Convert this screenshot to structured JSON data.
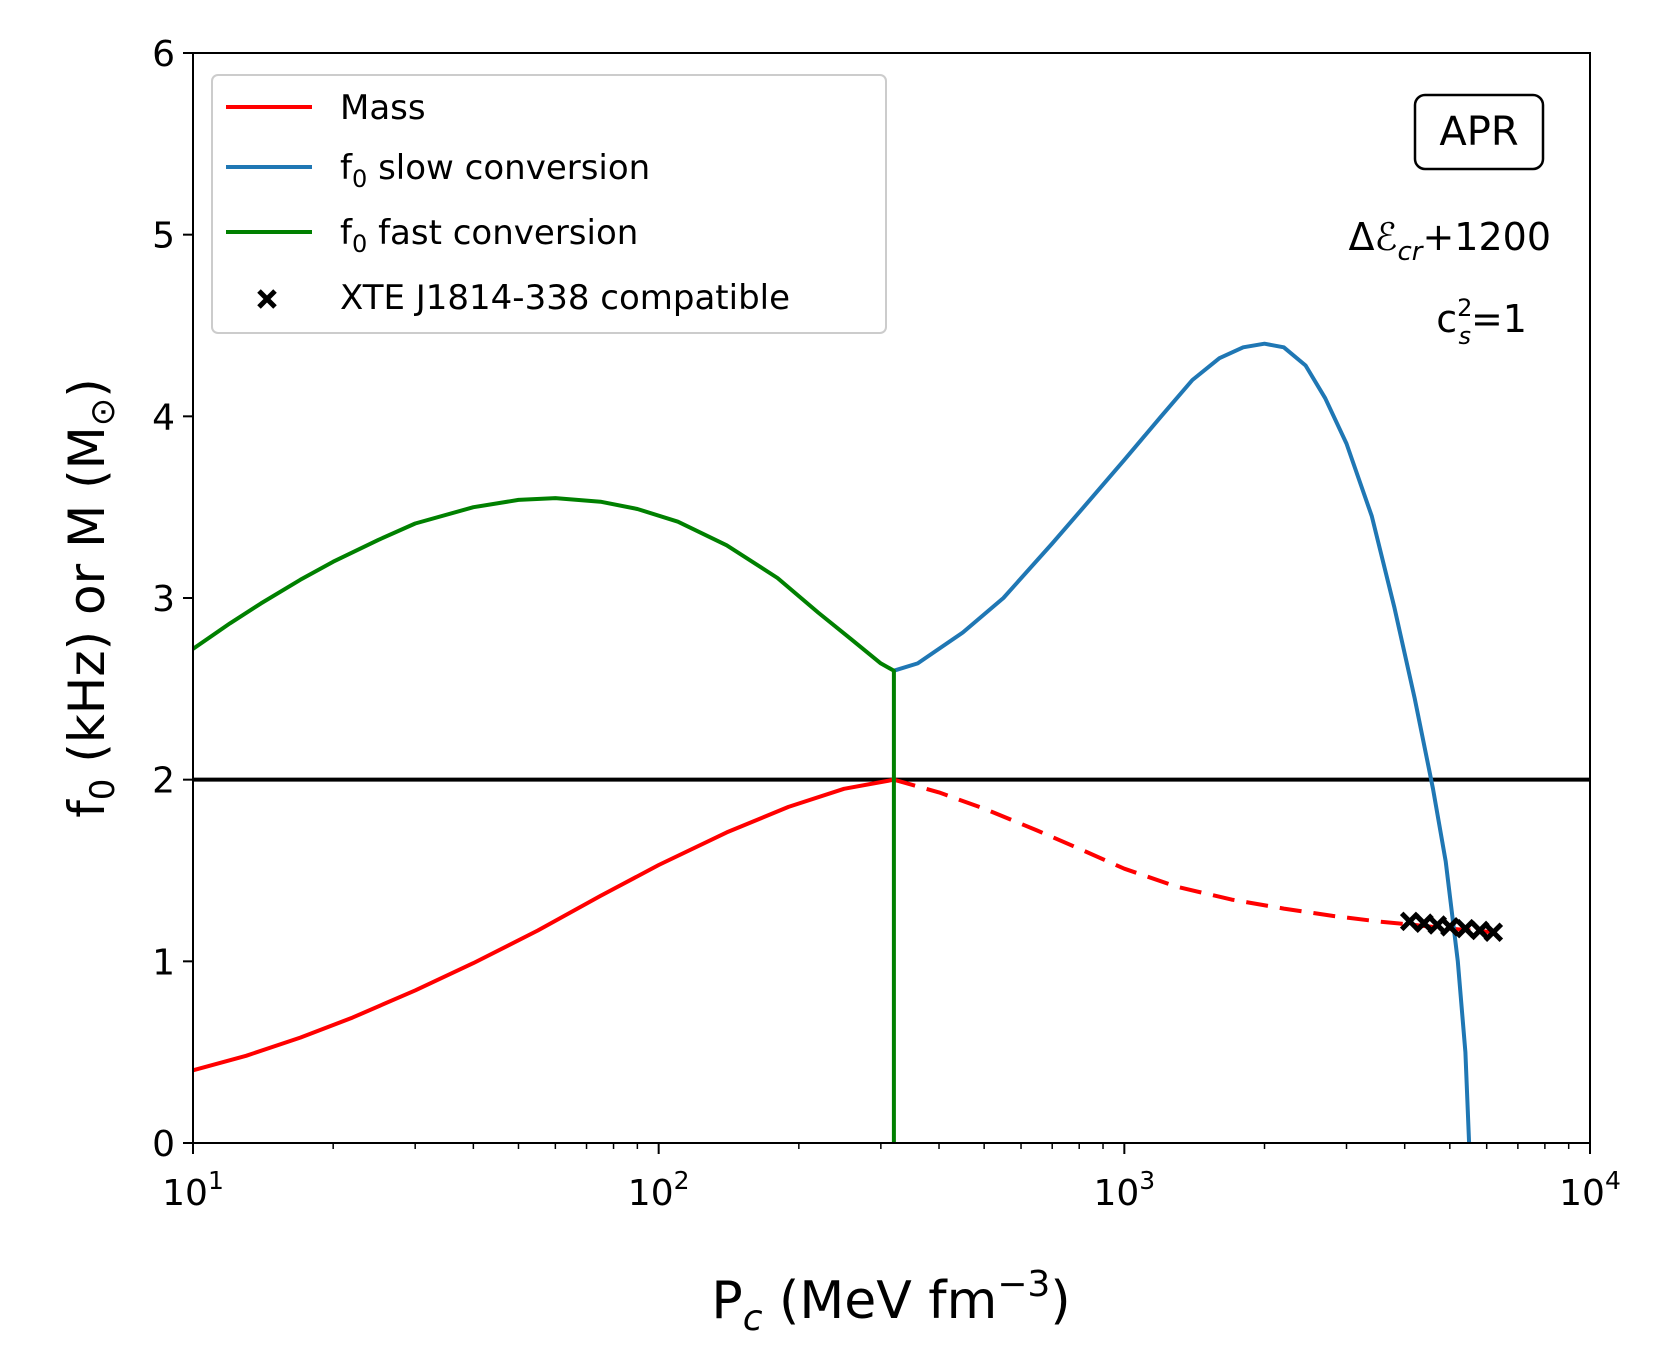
{
  "chart_data": {
    "type": "line",
    "xscale": "log",
    "xlim": [
      10,
      10000
    ],
    "ylim": [
      0,
      6
    ],
    "xlabel": {
      "base": "P",
      "sub": "c",
      "rest": " (MeV fm",
      "sup": "−3",
      "close": ")"
    },
    "ylabel": {
      "p1": "f",
      "p1_sub": "0",
      "p2": " (kHz)    or    M (M",
      "p2_sub": "⊙",
      "p3": ")"
    },
    "xticks": [
      {
        "value": 10,
        "base": "10",
        "exp": "1"
      },
      {
        "value": 100,
        "base": "10",
        "exp": "2"
      },
      {
        "value": 1000,
        "base": "10",
        "exp": "3"
      },
      {
        "value": 10000,
        "base": "10",
        "exp": "4"
      }
    ],
    "yticks": [
      "0",
      "1",
      "2",
      "3",
      "4",
      "5",
      "6"
    ],
    "hline": {
      "y": 2,
      "color": "#000000"
    },
    "annotations": {
      "eos_label": "APR",
      "delta": {
        "prefix": "Δℰ",
        "sub": "cr",
        "suffix": "+1200"
      },
      "cs": {
        "base": "c",
        "sup": "2",
        "sub": "s",
        "suffix": "=1"
      }
    },
    "legend": {
      "placement": "top-left",
      "entries": [
        {
          "label": "Mass",
          "color": "#ff0000",
          "marker": "line"
        },
        {
          "label": "f",
          "sub": "0",
          "rest": " slow conversion",
          "color": "#1f77b4",
          "marker": "line"
        },
        {
          "label": "f",
          "sub": "0",
          "rest": " fast conversion",
          "color": "#008000",
          "marker": "line"
        },
        {
          "label": "XTE J1814-338 compatible",
          "color": "#000000",
          "marker": "x"
        }
      ]
    },
    "series": [
      {
        "name": "Mass",
        "color": "#ff0000",
        "style": "solid",
        "x": [
          10,
          13,
          17,
          22,
          30,
          40,
          55,
          75,
          100,
          140,
          190,
          250,
          320
        ],
        "y": [
          0.4,
          0.48,
          0.58,
          0.69,
          0.84,
          0.99,
          1.17,
          1.36,
          1.53,
          1.71,
          1.85,
          1.95,
          2.0
        ]
      },
      {
        "name": "Mass (unstable branch)",
        "color": "#ff0000",
        "style": "dashed",
        "x": [
          320,
          400,
          500,
          650,
          800,
          1000,
          1300,
          1700,
          2200,
          2800,
          3500,
          4200,
          5000,
          6200
        ],
        "y": [
          2.0,
          1.93,
          1.84,
          1.72,
          1.62,
          1.51,
          1.41,
          1.34,
          1.29,
          1.25,
          1.22,
          1.2,
          1.18,
          1.16
        ]
      },
      {
        "name": "f0 slow conversion",
        "color": "#1f77b4",
        "style": "solid",
        "x": [
          320,
          360,
          450,
          550,
          700,
          850,
          1000,
          1200,
          1400,
          1600,
          1800,
          2000,
          2200,
          2450,
          2700,
          3000,
          3400,
          3800,
          4200,
          4600,
          4900,
          5200,
          5400,
          5500
        ],
        "y": [
          2.6,
          2.64,
          2.81,
          3.0,
          3.3,
          3.55,
          3.76,
          4.0,
          4.2,
          4.32,
          4.38,
          4.4,
          4.38,
          4.28,
          4.1,
          3.85,
          3.45,
          2.95,
          2.45,
          1.95,
          1.55,
          1.0,
          0.5,
          0.0
        ]
      },
      {
        "name": "f0 fast conversion",
        "color": "#008000",
        "style": "solid",
        "x": [
          10,
          12,
          14,
          17,
          20,
          25,
          30,
          40,
          50,
          60,
          75,
          90,
          110,
          140,
          180,
          220,
          260,
          300,
          320,
          320
        ],
        "y": [
          2.72,
          2.86,
          2.97,
          3.1,
          3.2,
          3.32,
          3.41,
          3.5,
          3.54,
          3.55,
          3.53,
          3.49,
          3.42,
          3.29,
          3.11,
          2.92,
          2.77,
          2.64,
          2.6,
          0.0
        ]
      }
    ],
    "markers": {
      "name": "XTE J1814-338 compatible",
      "color": "#000000",
      "x": [
        4100,
        4400,
        4700,
        5000,
        5400,
        5800,
        6200
      ],
      "y": [
        1.22,
        1.21,
        1.2,
        1.19,
        1.18,
        1.17,
        1.16
      ]
    }
  }
}
